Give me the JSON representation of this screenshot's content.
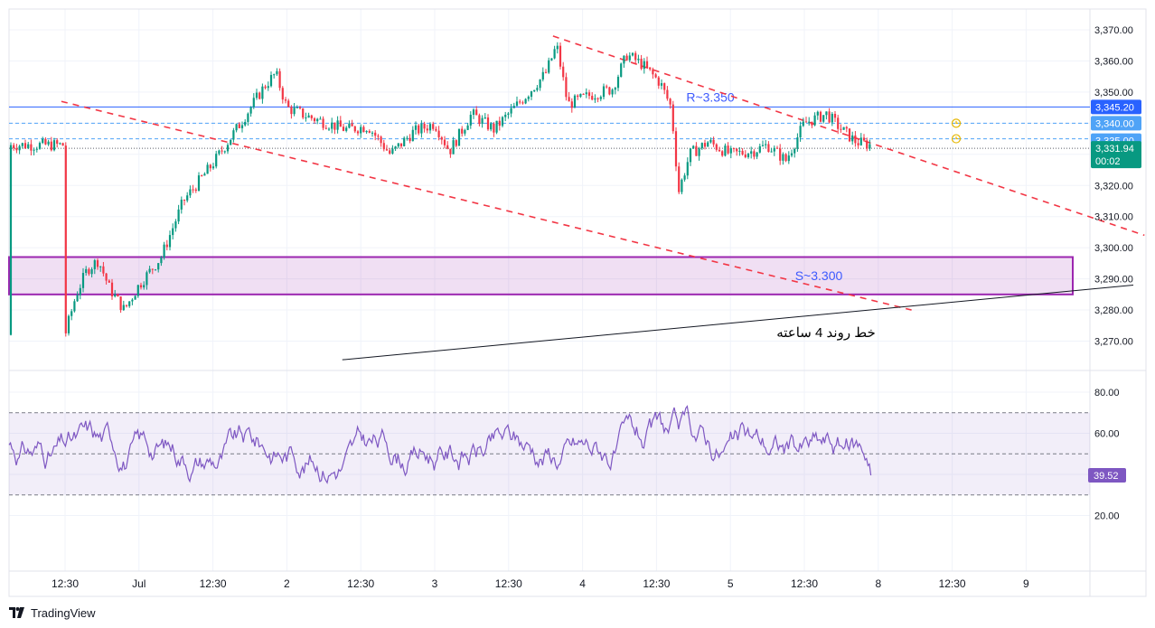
{
  "chart_data": [
    {
      "type": "candlestick",
      "ylim": [
        3265,
        3375
      ],
      "y_ticks": [
        3270,
        3280,
        3290,
        3300,
        3310,
        3320,
        3330,
        3340,
        3350,
        3360,
        3370
      ],
      "y_tick_labels": [
        "3,270.00",
        "3,280.00",
        "3,290.00",
        "3,300.00",
        "3,310.00",
        "3,320.00",
        "3,330.00",
        "3,340.00",
        "3,350.00",
        "3,360.00",
        "3,370.00"
      ],
      "x_ticks": [
        "12:30",
        "Jul",
        "12:30",
        "2",
        "12:30",
        "3",
        "12:30",
        "4",
        "12:30",
        "5",
        "12:30",
        "8",
        "12:30",
        "9"
      ],
      "price_path": [
        [
          0,
          3272
        ],
        [
          0.15,
          3285
        ],
        [
          0.3,
          3293
        ],
        [
          0.45,
          3296
        ],
        [
          0.6,
          3287
        ],
        [
          0.8,
          3280
        ],
        [
          1.0,
          3288
        ],
        [
          1.3,
          3297
        ],
        [
          1.6,
          3315
        ],
        [
          2.0,
          3327
        ],
        [
          2.4,
          3341
        ],
        [
          2.7,
          3352
        ],
        [
          2.85,
          3356
        ],
        [
          3.0,
          3345
        ],
        [
          3.3,
          3342
        ],
        [
          3.8,
          3338
        ],
        [
          4.1,
          3339
        ],
        [
          4.4,
          3330
        ],
        [
          4.7,
          3337
        ],
        [
          5.0,
          3340
        ],
        [
          5.2,
          3331
        ],
        [
          5.5,
          3343
        ],
        [
          5.8,
          3338
        ],
        [
          6.2,
          3348
        ],
        [
          6.5,
          3356
        ],
        [
          6.65,
          3365
        ],
        [
          6.8,
          3346
        ],
        [
          7.1,
          3349
        ],
        [
          7.4,
          3351
        ],
        [
          7.6,
          3362
        ],
        [
          7.8,
          3359
        ],
        [
          8.05,
          3353
        ],
        [
          8.2,
          3345
        ],
        [
          8.3,
          3318
        ],
        [
          8.45,
          3330
        ],
        [
          8.7,
          3334
        ],
        [
          9.0,
          3330
        ],
        [
          9.3,
          3331
        ],
        [
          9.5,
          3333
        ],
        [
          9.75,
          3328
        ],
        [
          10.0,
          3340
        ],
        [
          10.3,
          3343
        ],
        [
          10.5,
          3338
        ],
        [
          10.7,
          3334
        ],
        [
          10.9,
          3333
        ]
      ],
      "last_candle_index": 10.9,
      "horizontal_levels": [
        {
          "price": 3345.2,
          "label": "3,345.20",
          "style": "solid",
          "color": "#2962ff"
        },
        {
          "price": 3340.0,
          "label": "3,340.00",
          "style": "dashed",
          "color": "#4fa3f7"
        },
        {
          "price": 3335.0,
          "label": "3,335.00",
          "style": "dashed",
          "color": "#4fa3f7"
        },
        {
          "price": 3331.94,
          "label": "3,331.94",
          "countdown": "00:02",
          "style": "dotted",
          "color": "#089981"
        }
      ],
      "resistance_label": "R~3.350",
      "support_zone": {
        "from": 3285,
        "to": 3297,
        "label": "S~3.300",
        "color": "#9c27b0"
      },
      "trendline_label": "خط روند 4 ساعته",
      "dashed_trendlines": [
        {
          "from": [
            -0.05,
            3347
          ],
          "to": [
            11.45,
            3280
          ],
          "color": "#f23645"
        },
        {
          "from": [
            6.6,
            3368
          ],
          "to": [
            14.6,
            3304
          ],
          "color": "#f23645"
        }
      ],
      "solid_trendline": {
        "from": [
          3.75,
          3264
        ],
        "to": [
          14.45,
          3288
        ],
        "color": "#131722"
      }
    },
    {
      "type": "line",
      "series": [
        {
          "values": []
        }
      ],
      "ylim": [
        10,
        90
      ],
      "y_ticks": [
        20,
        40,
        60,
        80
      ],
      "y_tick_labels": [
        "20.00",
        "40.00",
        "60.00",
        "80.00"
      ],
      "band": [
        30,
        70
      ],
      "midline": 50,
      "last_value": 39.52,
      "last_label": "39.52",
      "color": "#7e57c2"
    }
  ],
  "branding": {
    "name": "TradingView"
  }
}
